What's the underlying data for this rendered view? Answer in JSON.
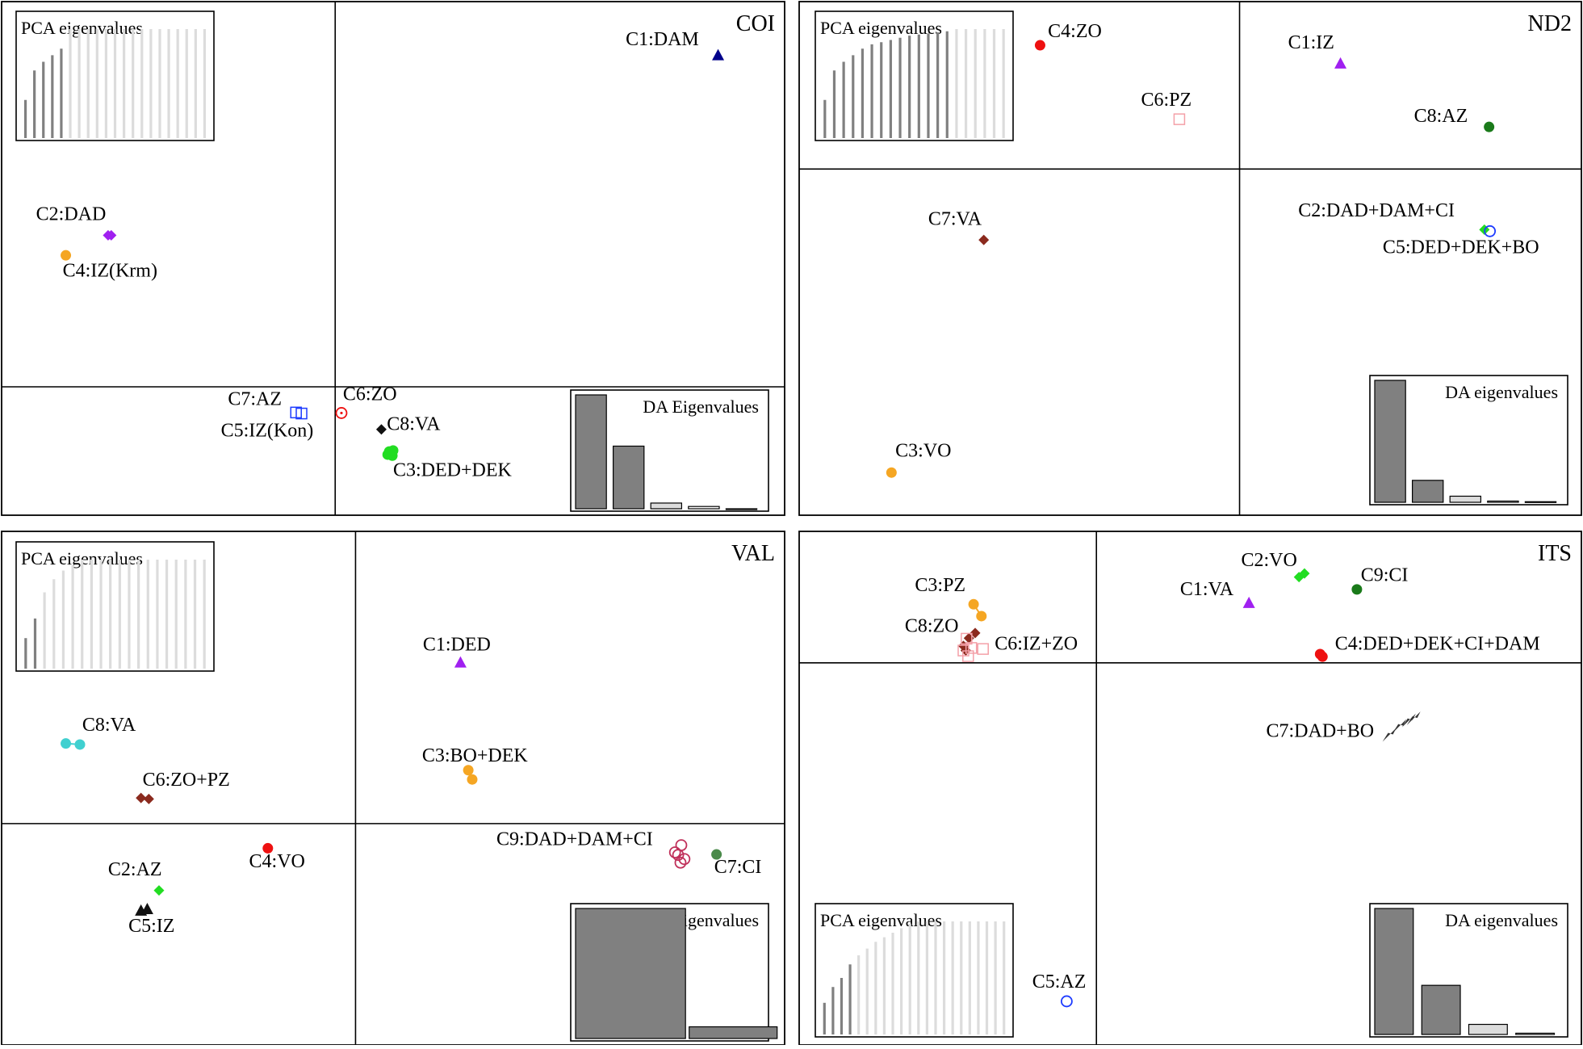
{
  "colors": {
    "axis_line": "#000000",
    "bar_dark": "#808080",
    "bar_light": "#dcdcdc",
    "bar_empty": "#ffffff",
    "purple": "#a020f0",
    "orange": "#f5a623",
    "navy": "#00008b",
    "blue": "#1e3cff",
    "red": "#ee1111",
    "green": "#22dd22",
    "dark_green": "#1a7a1a",
    "mid_green": "#4a8a4a",
    "brown": "#8b2a1e",
    "pink": "#f4a0a8",
    "cyan": "#40d0d0",
    "crimson": "#c0305a",
    "black": "#111111",
    "dark_gray": "#333333"
  },
  "chart_data": [
    {
      "type": "scatter",
      "title": "COI",
      "xlim": [
        0,
        100
      ],
      "ylim": [
        0,
        100
      ],
      "axes": {
        "x0": 42.6,
        "y0": 25.0
      },
      "pca_inset": {
        "title": "PCA eigenvalues",
        "values": [
          35,
          62,
          70,
          76,
          82,
          100,
          100,
          100,
          100,
          100,
          100,
          100,
          100,
          100,
          100,
          100,
          100,
          100,
          100,
          100,
          100
        ],
        "highlight": 5
      },
      "da_inset": {
        "title": "DA Eigenvalues",
        "values": [
          100,
          55,
          5,
          2,
          0
        ],
        "position": "bottom-right"
      },
      "series": [
        {
          "label": "C1:DAM",
          "marker": "triangle",
          "color": "navy",
          "points": [
            [
              91.5,
              89.6
            ]
          ],
          "label_at": [
            79.7,
            91.5
          ]
        },
        {
          "label": "C2:DAD",
          "marker": "diamond",
          "color": "purple",
          "points": [
            [
              13.6,
              54.5
            ],
            [
              14.0,
              54.5
            ]
          ],
          "label_at": [
            4.4,
            57.5
          ]
        },
        {
          "label": "C4:IZ(Krm)",
          "marker": "circle",
          "color": "orange",
          "points": [
            [
              8.2,
              50.6
            ]
          ],
          "label_at": [
            7.8,
            46.5
          ]
        },
        {
          "label": "C7:AZ",
          "marker": "square_open",
          "color": "blue",
          "points": [
            [
              37.6,
              20.0
            ],
            [
              38.3,
              19.8
            ]
          ],
          "label_at": [
            28.9,
            21.5
          ]
        },
        {
          "label": "C5:IZ(Kon)",
          "marker": "none",
          "color": "blue",
          "points": [],
          "label_at": [
            28.0,
            15.3
          ]
        },
        {
          "label": "C6:ZO",
          "marker": "circle_open_dot",
          "color": "red",
          "points": [
            [
              43.4,
              19.9
            ]
          ],
          "label_at": [
            43.6,
            22.4
          ]
        },
        {
          "label": "C8:VA",
          "marker": "diamond",
          "color": "black",
          "points": [
            [
              48.5,
              16.7
            ]
          ],
          "label_at": [
            49.2,
            16.6
          ]
        },
        {
          "label": "C3:DED+DEK",
          "marker": "circle",
          "color": "green",
          "points": [
            [
              49.5,
              12.4
            ],
            [
              49.9,
              11.6
            ],
            [
              49.3,
              11.8
            ],
            [
              50.0,
              12.6
            ]
          ],
          "label_at": [
            50.0,
            7.6
          ]
        }
      ]
    },
    {
      "type": "scatter",
      "title": "ND2",
      "xlim": [
        0,
        100
      ],
      "ylim": [
        0,
        100
      ],
      "axes": {
        "x0": 56.3,
        "y0": 67.4
      },
      "pca_inset": {
        "title": "PCA eigenvalues",
        "values": [
          35,
          62,
          70,
          76,
          82,
          86,
          88,
          90,
          92,
          94,
          95,
          96,
          97,
          98,
          100,
          100,
          100,
          100,
          100,
          100
        ],
        "highlight": 14
      },
      "da_inset": {
        "title": "DA eigenvalues",
        "values": [
          100,
          18,
          5,
          1,
          0.5
        ],
        "position": "bottom-right"
      },
      "series": [
        {
          "label": "C4:ZO",
          "marker": "circle",
          "color": "red",
          "points": [
            [
              30.8,
              91.5
            ]
          ],
          "label_at": [
            31.8,
            93.1
          ]
        },
        {
          "label": "C6:PZ",
          "marker": "square_open",
          "color": "pink",
          "points": [
            [
              48.6,
              77.1
            ]
          ],
          "label_at": [
            43.7,
            79.7
          ]
        },
        {
          "label": "C1:IZ",
          "marker": "triangle",
          "color": "purple",
          "points": [
            [
              69.2,
              88.0
            ]
          ],
          "label_at": [
            62.5,
            90.9
          ]
        },
        {
          "label": "C8:AZ",
          "marker": "circle",
          "color": "dark_green",
          "points": [
            [
              88.2,
              75.6
            ]
          ],
          "label_at": [
            78.6,
            76.6
          ]
        },
        {
          "label": "C7:VA",
          "marker": "diamond",
          "color": "brown",
          "points": [
            [
              23.6,
              53.6
            ]
          ],
          "label_at": [
            16.5,
            56.5
          ]
        },
        {
          "label": "C2:DAD+DAM+CI",
          "marker": "diamond",
          "color": "green",
          "points": [
            [
              87.6,
              55.6
            ]
          ],
          "label_at": [
            63.8,
            58.2
          ]
        },
        {
          "label": "C5:DED+DEK+BO",
          "marker": "circle_open",
          "color": "blue",
          "points": [
            [
              88.3,
              55.3
            ]
          ],
          "label_at": [
            74.6,
            51.0
          ]
        },
        {
          "label": "C3:VO",
          "marker": "circle",
          "color": "orange",
          "points": [
            [
              11.8,
              8.3
            ]
          ],
          "label_at": [
            12.3,
            11.4
          ]
        }
      ]
    },
    {
      "type": "scatter",
      "title": "VAL",
      "xlim": [
        0,
        100
      ],
      "ylim": [
        0,
        100
      ],
      "axes": {
        "x0": 45.2,
        "y0": 43.1
      },
      "pca_inset": {
        "title": "PCA eigenvalues",
        "values": [
          28,
          46,
          70,
          82,
          90,
          95,
          100,
          100,
          100,
          100,
          100,
          100,
          100,
          100,
          100,
          100,
          100,
          100,
          100,
          100
        ],
        "highlight": 2
      },
      "da_inset": {
        "title": "DA eigenvalues",
        "values": [
          100,
          9
        ],
        "position": "bottom-right"
      },
      "series": [
        {
          "label": "C1:DED",
          "marker": "triangle",
          "color": "purple",
          "points": [
            [
              58.6,
              74.5
            ]
          ],
          "label_at": [
            53.8,
            76.8
          ]
        },
        {
          "label": "C8:VA",
          "marker": "circle",
          "color": "cyan",
          "points": [
            [
              8.2,
              58.7
            ],
            [
              10.0,
              58.5
            ]
          ],
          "label_at": [
            10.3,
            61.2
          ],
          "connect": true
        },
        {
          "label": "C3:BO+DEK",
          "marker": "circle",
          "color": "orange",
          "points": [
            [
              59.6,
              53.5
            ],
            [
              60.1,
              51.7
            ]
          ],
          "label_at": [
            53.7,
            55.2
          ]
        },
        {
          "label": "C6:ZO+PZ",
          "marker": "diamond",
          "color": "brown",
          "points": [
            [
              17.8,
              48.1
            ],
            [
              18.8,
              47.9
            ]
          ],
          "label_at": [
            18.0,
            50.5
          ]
        },
        {
          "label": "C9:DAD+DAM+CI",
          "marker": "circle_open",
          "color": "crimson",
          "points": [
            [
              86.8,
              38.9
            ],
            [
              86.4,
              37.0
            ],
            [
              87.2,
              36.2
            ],
            [
              86.7,
              35.5
            ],
            [
              86.0,
              37.5
            ]
          ],
          "label_at": [
            63.2,
            38.9
          ]
        },
        {
          "label": "C7:CI",
          "marker": "circle",
          "color": "mid_green",
          "points": [
            [
              91.3,
              37.1
            ]
          ],
          "label_at": [
            91.0,
            33.5
          ]
        },
        {
          "label": "C4:VO",
          "marker": "circle",
          "color": "red",
          "points": [
            [
              34.0,
              38.3
            ]
          ],
          "label_at": [
            31.6,
            34.6
          ]
        },
        {
          "label": "C2:AZ",
          "marker": "diamond",
          "color": "green",
          "points": [
            [
              20.1,
              30.1
            ]
          ],
          "label_at": [
            13.6,
            33.0
          ]
        },
        {
          "label": "C5:IZ",
          "marker": "triangle",
          "color": "black",
          "points": [
            [
              17.8,
              26.2
            ],
            [
              18.6,
              26.5
            ]
          ],
          "label_at": [
            16.2,
            22.0
          ]
        }
      ]
    },
    {
      "type": "scatter",
      "title": "ITS",
      "xlim": [
        0,
        100
      ],
      "ylim": [
        0,
        100
      ],
      "axes": {
        "x0": 38.0,
        "y0": 74.4
      },
      "pca_inset": {
        "title": "PCA eigenvalues",
        "values": [
          28,
          42,
          50,
          62,
          70,
          76,
          82,
          86,
          90,
          94,
          98,
          100,
          100,
          100,
          100,
          100,
          100,
          100,
          100,
          100,
          100,
          100
        ],
        "highlight": 4
      },
      "da_inset": {
        "title": "DA eigenvalues",
        "values": [
          100,
          39,
          8,
          1
        ],
        "position": "bottom-right"
      },
      "series": [
        {
          "label": "C3:PZ",
          "marker": "circle",
          "color": "orange",
          "points": [
            [
              22.3,
              85.8
            ],
            [
              23.3,
              83.5
            ]
          ],
          "label_at": [
            14.8,
            88.4
          ],
          "connect": true
        },
        {
          "label": "C8:ZO",
          "marker": "diamond",
          "color": "brown",
          "points": [
            [
              21.3,
              76.8
            ],
            [
              21.0,
              77.7
            ],
            [
              22.5,
              80.2
            ],
            [
              21.7,
              79.2
            ]
          ],
          "label_at": [
            13.5,
            80.4
          ]
        },
        {
          "label": "C6:IZ+ZO",
          "marker": "square_open",
          "color": "pink",
          "points": [
            [
              21.0,
              76.8
            ],
            [
              21.6,
              75.7
            ],
            [
              22.0,
              77.3
            ],
            [
              23.5,
              77.1
            ],
            [
              21.4,
              79.1
            ]
          ],
          "label_at": [
            25.0,
            77.0
          ]
        },
        {
          "label": "C2:VO",
          "marker": "diamond",
          "color": "green",
          "points": [
            [
              63.9,
              91.1
            ],
            [
              64.6,
              91.8
            ]
          ],
          "label_at": [
            56.5,
            93.2
          ]
        },
        {
          "label": "C1:VA",
          "marker": "triangle",
          "color": "purple",
          "points": [
            [
              57.5,
              86.1
            ]
          ],
          "label_at": [
            48.7,
            87.6
          ]
        },
        {
          "label": "C9:CI",
          "marker": "circle",
          "color": "dark_green",
          "points": [
            [
              71.3,
              88.7
            ]
          ],
          "label_at": [
            71.8,
            90.3
          ]
        },
        {
          "label": "C4:DED+DEK+CI+DAM",
          "marker": "circle",
          "color": "red",
          "points": [
            [
              66.6,
              76.1
            ],
            [
              66.9,
              75.6
            ]
          ],
          "label_at": [
            68.5,
            77.0
          ]
        },
        {
          "label": "C7:DAD+BO",
          "marker": "arrow",
          "color": "dark_gray",
          "points": [
            [
              75.5,
              60.3
            ],
            [
              76.8,
              62.0
            ],
            [
              78.0,
              63.1
            ],
            [
              78.6,
              63.5
            ]
          ],
          "label_at": [
            59.7,
            60.0
          ]
        },
        {
          "label": "C5:AZ",
          "marker": "circle_open",
          "color": "blue",
          "points": [
            [
              34.2,
              8.5
            ]
          ],
          "label_at": [
            29.8,
            11.2
          ]
        }
      ]
    }
  ]
}
